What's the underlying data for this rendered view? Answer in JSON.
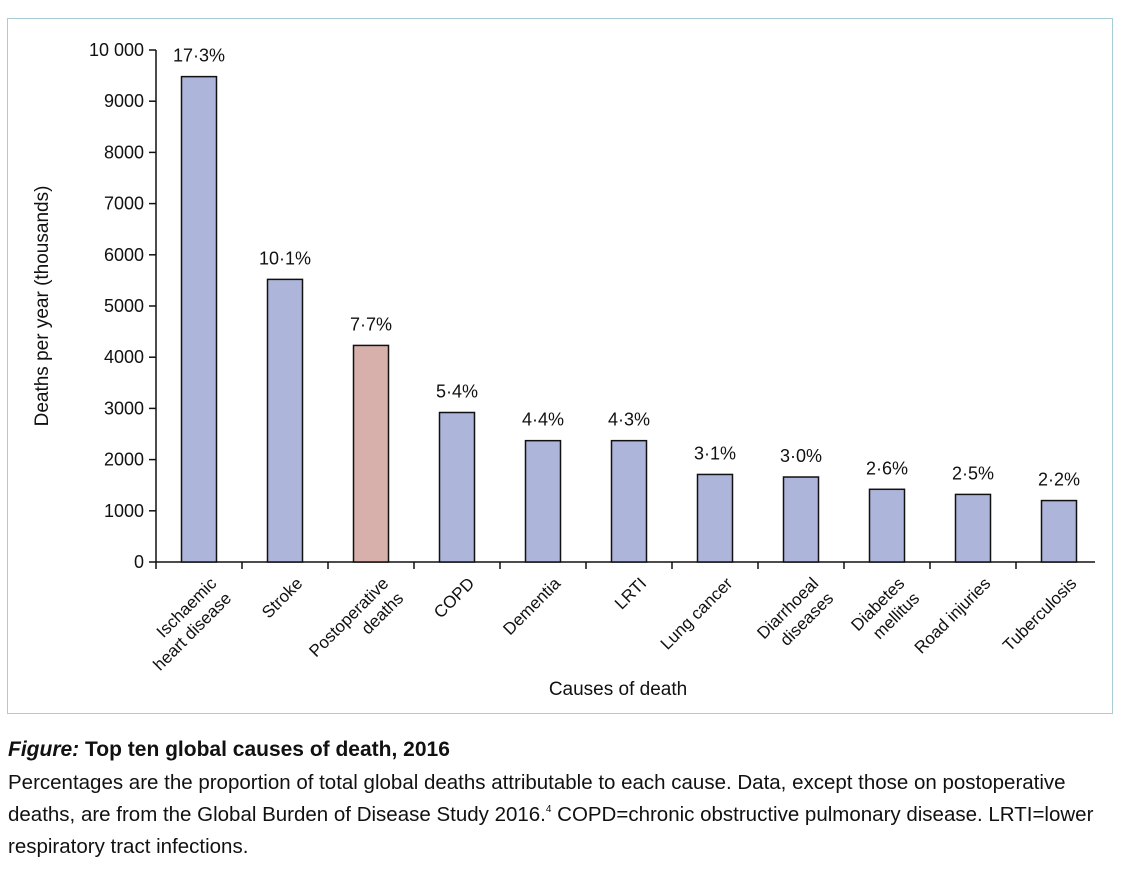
{
  "chart_data": {
    "type": "bar",
    "categories": [
      [
        "Ischaemic",
        "heart disease"
      ],
      [
        "Stroke"
      ],
      [
        "Postoperative",
        "deaths"
      ],
      [
        "COPD"
      ],
      [
        "Dementia"
      ],
      [
        "LRTI"
      ],
      [
        "Lung cancer"
      ],
      [
        "Diarrhoeal",
        "diseases"
      ],
      [
        "Diabetes",
        "mellitus"
      ],
      [
        "Road injuries"
      ],
      [
        "Tuberculosis"
      ]
    ],
    "values": [
      9480,
      5520,
      4230,
      2920,
      2370,
      2370,
      1710,
      1660,
      1420,
      1320,
      1200
    ],
    "data_labels": [
      "17·3%",
      "10·1%",
      "7·7%",
      "5·4%",
      "4·4%",
      "4·3%",
      "3·1%",
      "3·0%",
      "2·6%",
      "2·5%",
      "2·2%"
    ],
    "highlight_index": 2,
    "xlabel": "Causes of death",
    "ylabel": "Deaths per year (thousands)",
    "ylim": [
      0,
      10000
    ],
    "yticks": [
      0,
      1000,
      2000,
      3000,
      4000,
      5000,
      6000,
      7000,
      8000,
      9000,
      10000
    ],
    "ytick_labels": [
      "0",
      "1000",
      "2000",
      "3000",
      "4000",
      "5000",
      "6000",
      "7000",
      "8000",
      "9000",
      "10 000"
    ],
    "grid": false,
    "colors": {
      "bar": "#aeb5da",
      "highlight": "#d7b0ac",
      "stroke": "#111111",
      "frame": "#a9cdd6"
    }
  },
  "caption": {
    "figure_label": "Figure:",
    "title": " Top ten global causes of death, 2016",
    "text_part1": "Percentages are the proportion of total global deaths attributable to each cause. Data, except those on postoperative deaths, are from the Global Burden of Disease Study 2016.",
    "reference": "4",
    "text_part2": " COPD=chronic obstructive pulmonary disease. LRTI=lower respiratory tract infections."
  }
}
